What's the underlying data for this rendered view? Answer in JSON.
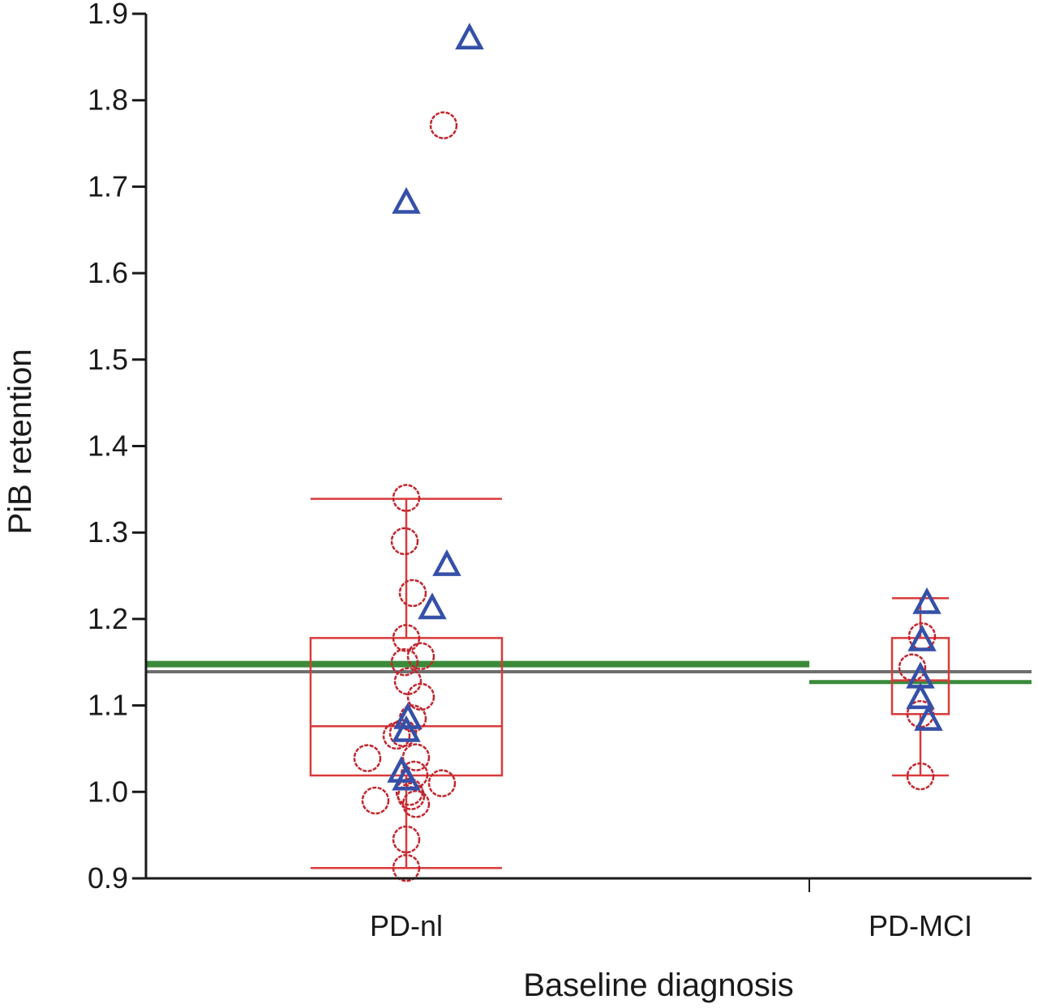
{
  "chart_data": {
    "type": "scatter",
    "subtype": "box-and-dot",
    "title": "",
    "xlabel": "Baseline diagnosis",
    "ylabel": "PiB retention",
    "ylim": [
      0.9,
      1.9
    ],
    "yticks": [
      "0.9",
      "1.0",
      "1.1",
      "1.2",
      "1.3",
      "1.4",
      "1.5",
      "1.6",
      "1.7",
      "1.8",
      "1.9"
    ],
    "categories": [
      "PD-nl",
      "PD-MCI"
    ],
    "grid": false,
    "colors": {
      "circle": "#c0262e",
      "triangle": "#3550a8",
      "box": "#d93a3a",
      "mean_line": "#3a8a3a",
      "overall_line": "#6e6e6e",
      "axis": "#1a1a1a"
    },
    "reference_lines": [
      {
        "name": "overall-mean",
        "value": 1.139,
        "color": "#6e6e6e",
        "span": "all"
      },
      {
        "name": "PD-nl-mean",
        "value": 1.144,
        "color": "#3a8a3a",
        "span": "PD-nl"
      },
      {
        "name": "PD-MCI-mean",
        "value": 1.127,
        "color": "#3a8a3a",
        "span": "PD-MCI"
      }
    ],
    "boxes": [
      {
        "category": "PD-nl",
        "whisker_low": 0.912,
        "q1": 1.019,
        "median": 1.076,
        "q3": 1.178,
        "whisker_high": 1.339
      },
      {
        "category": "PD-MCI",
        "whisker_low": 1.019,
        "q1": 1.09,
        "median": 1.129,
        "q3": 1.178,
        "whisker_high": 1.224
      }
    ],
    "series": [
      {
        "name": "circle",
        "marker": "circle",
        "points": [
          {
            "category": "PD-nl",
            "jitter": 0.0,
            "y": 1.34
          },
          {
            "category": "PD-nl",
            "jitter": -0.01,
            "y": 1.29
          },
          {
            "category": "PD-nl",
            "jitter": 0.04,
            "y": 1.23
          },
          {
            "category": "PD-nl",
            "jitter": 0.0,
            "y": 1.178
          },
          {
            "category": "PD-nl",
            "jitter": 0.09,
            "y": 1.157
          },
          {
            "category": "PD-nl",
            "jitter": -0.01,
            "y": 1.15
          },
          {
            "category": "PD-nl",
            "jitter": 0.01,
            "y": 1.128
          },
          {
            "category": "PD-nl",
            "jitter": 0.09,
            "y": 1.11
          },
          {
            "category": "PD-nl",
            "jitter": 0.04,
            "y": 1.085
          },
          {
            "category": "PD-nl",
            "jitter": -0.02,
            "y": 1.068
          },
          {
            "category": "PD-nl",
            "jitter": -0.06,
            "y": 1.065
          },
          {
            "category": "PD-nl",
            "jitter": 0.06,
            "y": 1.04
          },
          {
            "category": "PD-nl",
            "jitter": -0.24,
            "y": 1.039
          },
          {
            "category": "PD-nl",
            "jitter": 0.05,
            "y": 1.02
          },
          {
            "category": "PD-nl",
            "jitter": 0.22,
            "y": 1.01
          },
          {
            "category": "PD-nl",
            "jitter": 0.02,
            "y": 1.0
          },
          {
            "category": "PD-nl",
            "jitter": 0.03,
            "y": 0.995
          },
          {
            "category": "PD-nl",
            "jitter": -0.19,
            "y": 0.99
          },
          {
            "category": "PD-nl",
            "jitter": 0.06,
            "y": 0.986
          },
          {
            "category": "PD-nl",
            "jitter": 0.0,
            "y": 0.945
          },
          {
            "category": "PD-nl",
            "jitter": 0.0,
            "y": 0.912
          },
          {
            "category": "PD-nl",
            "jitter": 0.23,
            "y": 1.771
          },
          {
            "category": "PD-MCI",
            "jitter": 0.01,
            "y": 1.18
          },
          {
            "category": "PD-MCI",
            "jitter": -0.05,
            "y": 1.144
          },
          {
            "category": "PD-MCI",
            "jitter": 0.0,
            "y": 1.09
          },
          {
            "category": "PD-MCI",
            "jitter": 0.0,
            "y": 1.018
          }
        ]
      },
      {
        "name": "triangle",
        "marker": "triangle",
        "points": [
          {
            "category": "PD-nl",
            "jitter": 0.39,
            "y": 1.873
          },
          {
            "category": "PD-nl",
            "jitter": 0.0,
            "y": 1.683
          },
          {
            "category": "PD-nl",
            "jitter": 0.25,
            "y": 1.264
          },
          {
            "category": "PD-nl",
            "jitter": 0.16,
            "y": 1.214
          },
          {
            "category": "PD-nl",
            "jitter": 0.01,
            "y": 1.087
          },
          {
            "category": "PD-nl",
            "jitter": 0.0,
            "y": 1.072
          },
          {
            "category": "PD-nl",
            "jitter": -0.03,
            "y": 1.025
          },
          {
            "category": "PD-nl",
            "jitter": 0.0,
            "y": 1.016
          },
          {
            "category": "PD-MCI",
            "jitter": 0.04,
            "y": 1.22
          },
          {
            "category": "PD-MCI",
            "jitter": 0.01,
            "y": 1.177
          },
          {
            "category": "PD-MCI",
            "jitter": 0.0,
            "y": 1.134
          },
          {
            "category": "PD-MCI",
            "jitter": 0.0,
            "y": 1.11
          },
          {
            "category": "PD-MCI",
            "jitter": 0.05,
            "y": 1.085
          }
        ]
      }
    ]
  }
}
